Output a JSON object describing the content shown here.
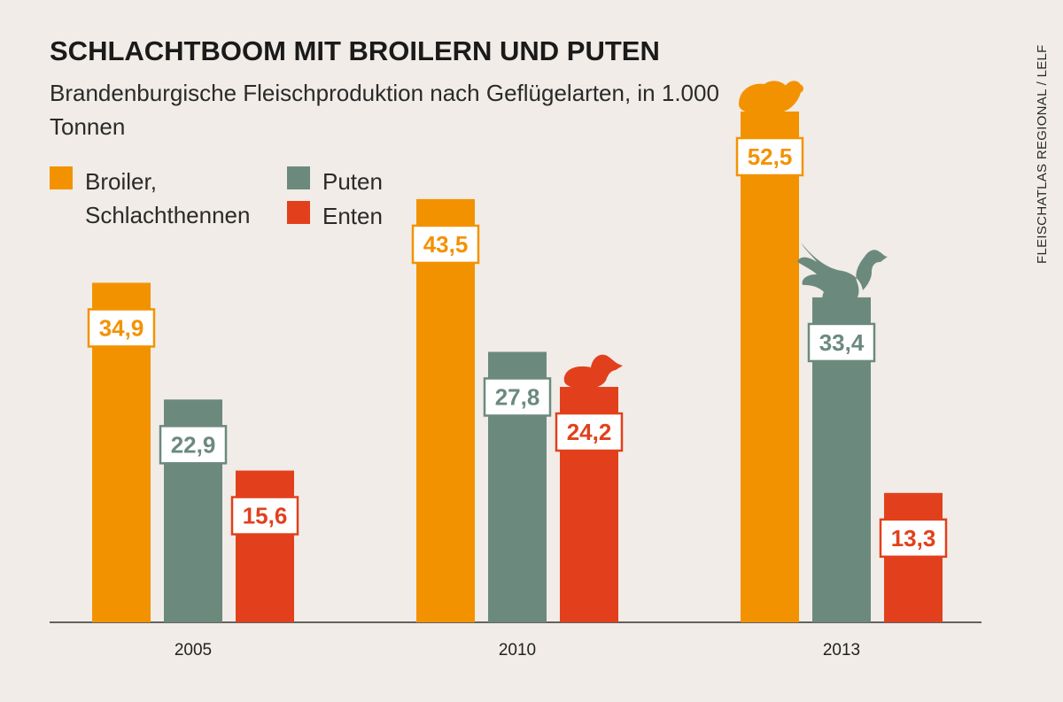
{
  "title": "SCHLACHTBOOM MIT BROILERN UND PUTEN",
  "subtitle": "Brandenburgische Fleischproduktion nach Geflügelarten, in 1.000 Tonnen",
  "source": "FLEISCHATLAS REGIONAL / LELF",
  "legend": [
    {
      "label": "Broiler, Schlachthennen",
      "color": "#f39200"
    },
    {
      "label": "Puten",
      "color": "#6b8a7d"
    },
    {
      "label": "Enten",
      "color": "#e2401c"
    }
  ],
  "chart_data": {
    "type": "bar",
    "categories": [
      "2005",
      "2010",
      "2013"
    ],
    "series": [
      {
        "name": "Broiler, Schlachthennen",
        "values": [
          34.9,
          43.5,
          52.5
        ],
        "labels": [
          "34,9",
          "43,5",
          "52,5"
        ],
        "color": "#f39200"
      },
      {
        "name": "Puten",
        "values": [
          22.9,
          27.8,
          33.4
        ],
        "labels": [
          "22,9",
          "27,8",
          "33,4"
        ],
        "color": "#6b8a7d"
      },
      {
        "name": "Enten",
        "values": [
          15.6,
          24.2,
          13.3
        ],
        "labels": [
          "15,6",
          "24,2",
          "13,3"
        ],
        "color": "#e2401c"
      }
    ],
    "xlabel": "",
    "ylabel": "",
    "ylim": [
      0,
      52.5
    ],
    "grid": false,
    "legend_position": "top-left",
    "icons": [
      {
        "name": "duck-icon",
        "series": 2,
        "category": 1
      },
      {
        "name": "chicken-icon",
        "series": 0,
        "category": 2
      },
      {
        "name": "turkey-icon",
        "series": 1,
        "category": 2
      }
    ]
  }
}
